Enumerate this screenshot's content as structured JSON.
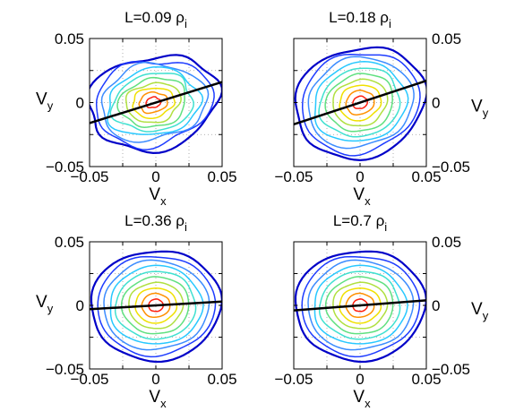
{
  "chart_data": [
    {
      "type": "contour",
      "title": "L=0.09 ρi",
      "title_main": "L=0.09 ρ",
      "title_sub": "i",
      "xlabel": "Vx",
      "xlabel_main": "V",
      "xlabel_sub": "x",
      "ylabel": "Vy",
      "ylabel_main": "V",
      "ylabel_sub": "y",
      "y_axis_side": "left",
      "xlim": [
        -0.05,
        0.05
      ],
      "ylim": [
        -0.05,
        0.05
      ],
      "xticks": [
        "−0.05",
        "0",
        "0.05"
      ],
      "yticks": [
        "−0.05",
        "0",
        "0.05"
      ],
      "grid": "dotted",
      "fit_line": {
        "x": [
          -0.05,
          0.05
        ],
        "y": [
          -0.016,
          0.016
        ]
      },
      "contour_levels": 10,
      "peak": [
        -0.002,
        0.0
      ]
    },
    {
      "type": "contour",
      "title": "L=0.18 ρi",
      "title_main": "L=0.18 ρ",
      "title_sub": "i",
      "xlabel": "Vx",
      "xlabel_main": "V",
      "xlabel_sub": "x",
      "ylabel": "Vy",
      "ylabel_main": "V",
      "ylabel_sub": "y",
      "y_axis_side": "right",
      "xlim": [
        -0.05,
        0.05
      ],
      "ylim": [
        -0.05,
        0.05
      ],
      "xticks": [
        "−0.05",
        "0",
        "0.05"
      ],
      "yticks": [
        "−0.05",
        "0",
        "0.05"
      ],
      "grid": "dotted",
      "fit_line": {
        "x": [
          -0.05,
          0.05
        ],
        "y": [
          -0.017,
          0.017
        ]
      },
      "contour_levels": 10,
      "peak": [
        0.0,
        0.0
      ]
    },
    {
      "type": "contour",
      "title": "L=0.36 ρi",
      "title_main": "L=0.36 ρ",
      "title_sub": "i",
      "xlabel": "Vx",
      "xlabel_main": "V",
      "xlabel_sub": "x",
      "ylabel": "Vy",
      "ylabel_main": "V",
      "ylabel_sub": "y",
      "y_axis_side": "left",
      "xlim": [
        -0.05,
        0.05
      ],
      "ylim": [
        -0.05,
        0.05
      ],
      "xticks": [
        "−0.05",
        "0",
        "0.05"
      ],
      "yticks": [
        "−0.05",
        "0",
        "0.05"
      ],
      "grid": "dotted",
      "fit_line": {
        "x": [
          -0.05,
          0.05
        ],
        "y": [
          -0.003,
          0.003
        ]
      },
      "contour_levels": 10,
      "peak": [
        0.0,
        0.0
      ]
    },
    {
      "type": "contour",
      "title": "L=0.7 ρi",
      "title_main": "L=0.7 ρ",
      "title_sub": "i",
      "xlabel": "Vx",
      "xlabel_main": "V",
      "xlabel_sub": "x",
      "ylabel": "Vy",
      "ylabel_main": "V",
      "ylabel_sub": "y",
      "y_axis_side": "right",
      "xlim": [
        -0.05,
        0.05
      ],
      "ylim": [
        -0.05,
        0.05
      ],
      "xticks": [
        "−0.05",
        "0",
        "0.05"
      ],
      "yticks": [
        "−0.05",
        "0",
        "0.05"
      ],
      "grid": "dotted",
      "fit_line": {
        "x": [
          -0.05,
          0.05
        ],
        "y": [
          -0.004,
          0.004
        ]
      },
      "contour_levels": 10,
      "peak": [
        0.0,
        0.0
      ]
    }
  ],
  "colors": {
    "contours": [
      "#0000c8",
      "#1e3cff",
      "#3c8cff",
      "#28c8ff",
      "#40e0d0",
      "#60e080",
      "#b0e040",
      "#f0e000",
      "#ff9000",
      "#ff2010"
    ],
    "fit_line": "#000000",
    "grid": "#999999"
  }
}
